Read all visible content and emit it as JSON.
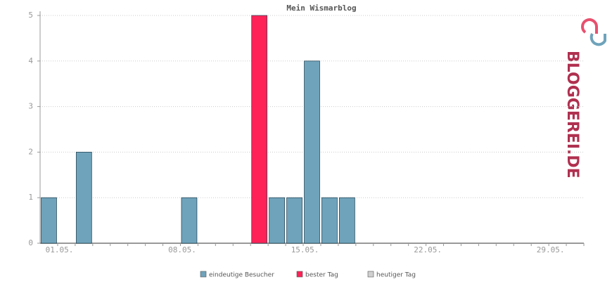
{
  "chart_data": {
    "type": "bar",
    "title": "Mein Wismarblog",
    "categories": [
      "01.05.",
      null,
      null,
      null,
      null,
      null,
      null,
      "08.05.",
      null,
      null,
      null,
      null,
      null,
      null,
      "15.05.",
      null,
      null,
      null,
      null,
      null,
      null,
      "22.05.",
      null,
      null,
      null,
      null,
      null,
      null,
      "29.05.",
      null,
      null
    ],
    "series": [
      {
        "name": "eindeutige Besucher",
        "color": "#6fa3bb",
        "values": [
          1,
          0,
          2,
          0,
          0,
          0,
          0,
          0,
          1,
          0,
          0,
          0,
          null,
          1,
          1,
          4,
          1,
          1,
          0,
          0,
          0,
          0,
          0,
          0,
          0,
          0,
          0,
          0,
          0,
          0,
          0
        ]
      },
      {
        "name": "bester Tag",
        "color": "#ff2257",
        "values": [
          null,
          null,
          null,
          null,
          null,
          null,
          null,
          null,
          null,
          null,
          null,
          null,
          5,
          null,
          null,
          null,
          null,
          null,
          null,
          null,
          null,
          null,
          null,
          null,
          null,
          null,
          null,
          null,
          null,
          null,
          null
        ]
      },
      {
        "name": "heutiger Tag",
        "color": "#d0d0d0",
        "values": [
          null,
          null,
          null,
          null,
          null,
          null,
          null,
          null,
          null,
          null,
          null,
          null,
          null,
          null,
          null,
          null,
          null,
          null,
          null,
          null,
          null,
          null,
          null,
          null,
          null,
          null,
          null,
          null,
          null,
          null,
          null
        ]
      }
    ],
    "ylim": [
      0,
      5
    ],
    "yticks": [
      0,
      1,
      2,
      3,
      4,
      5
    ],
    "grid": true
  },
  "logo": "BLOGGEREI.DE"
}
